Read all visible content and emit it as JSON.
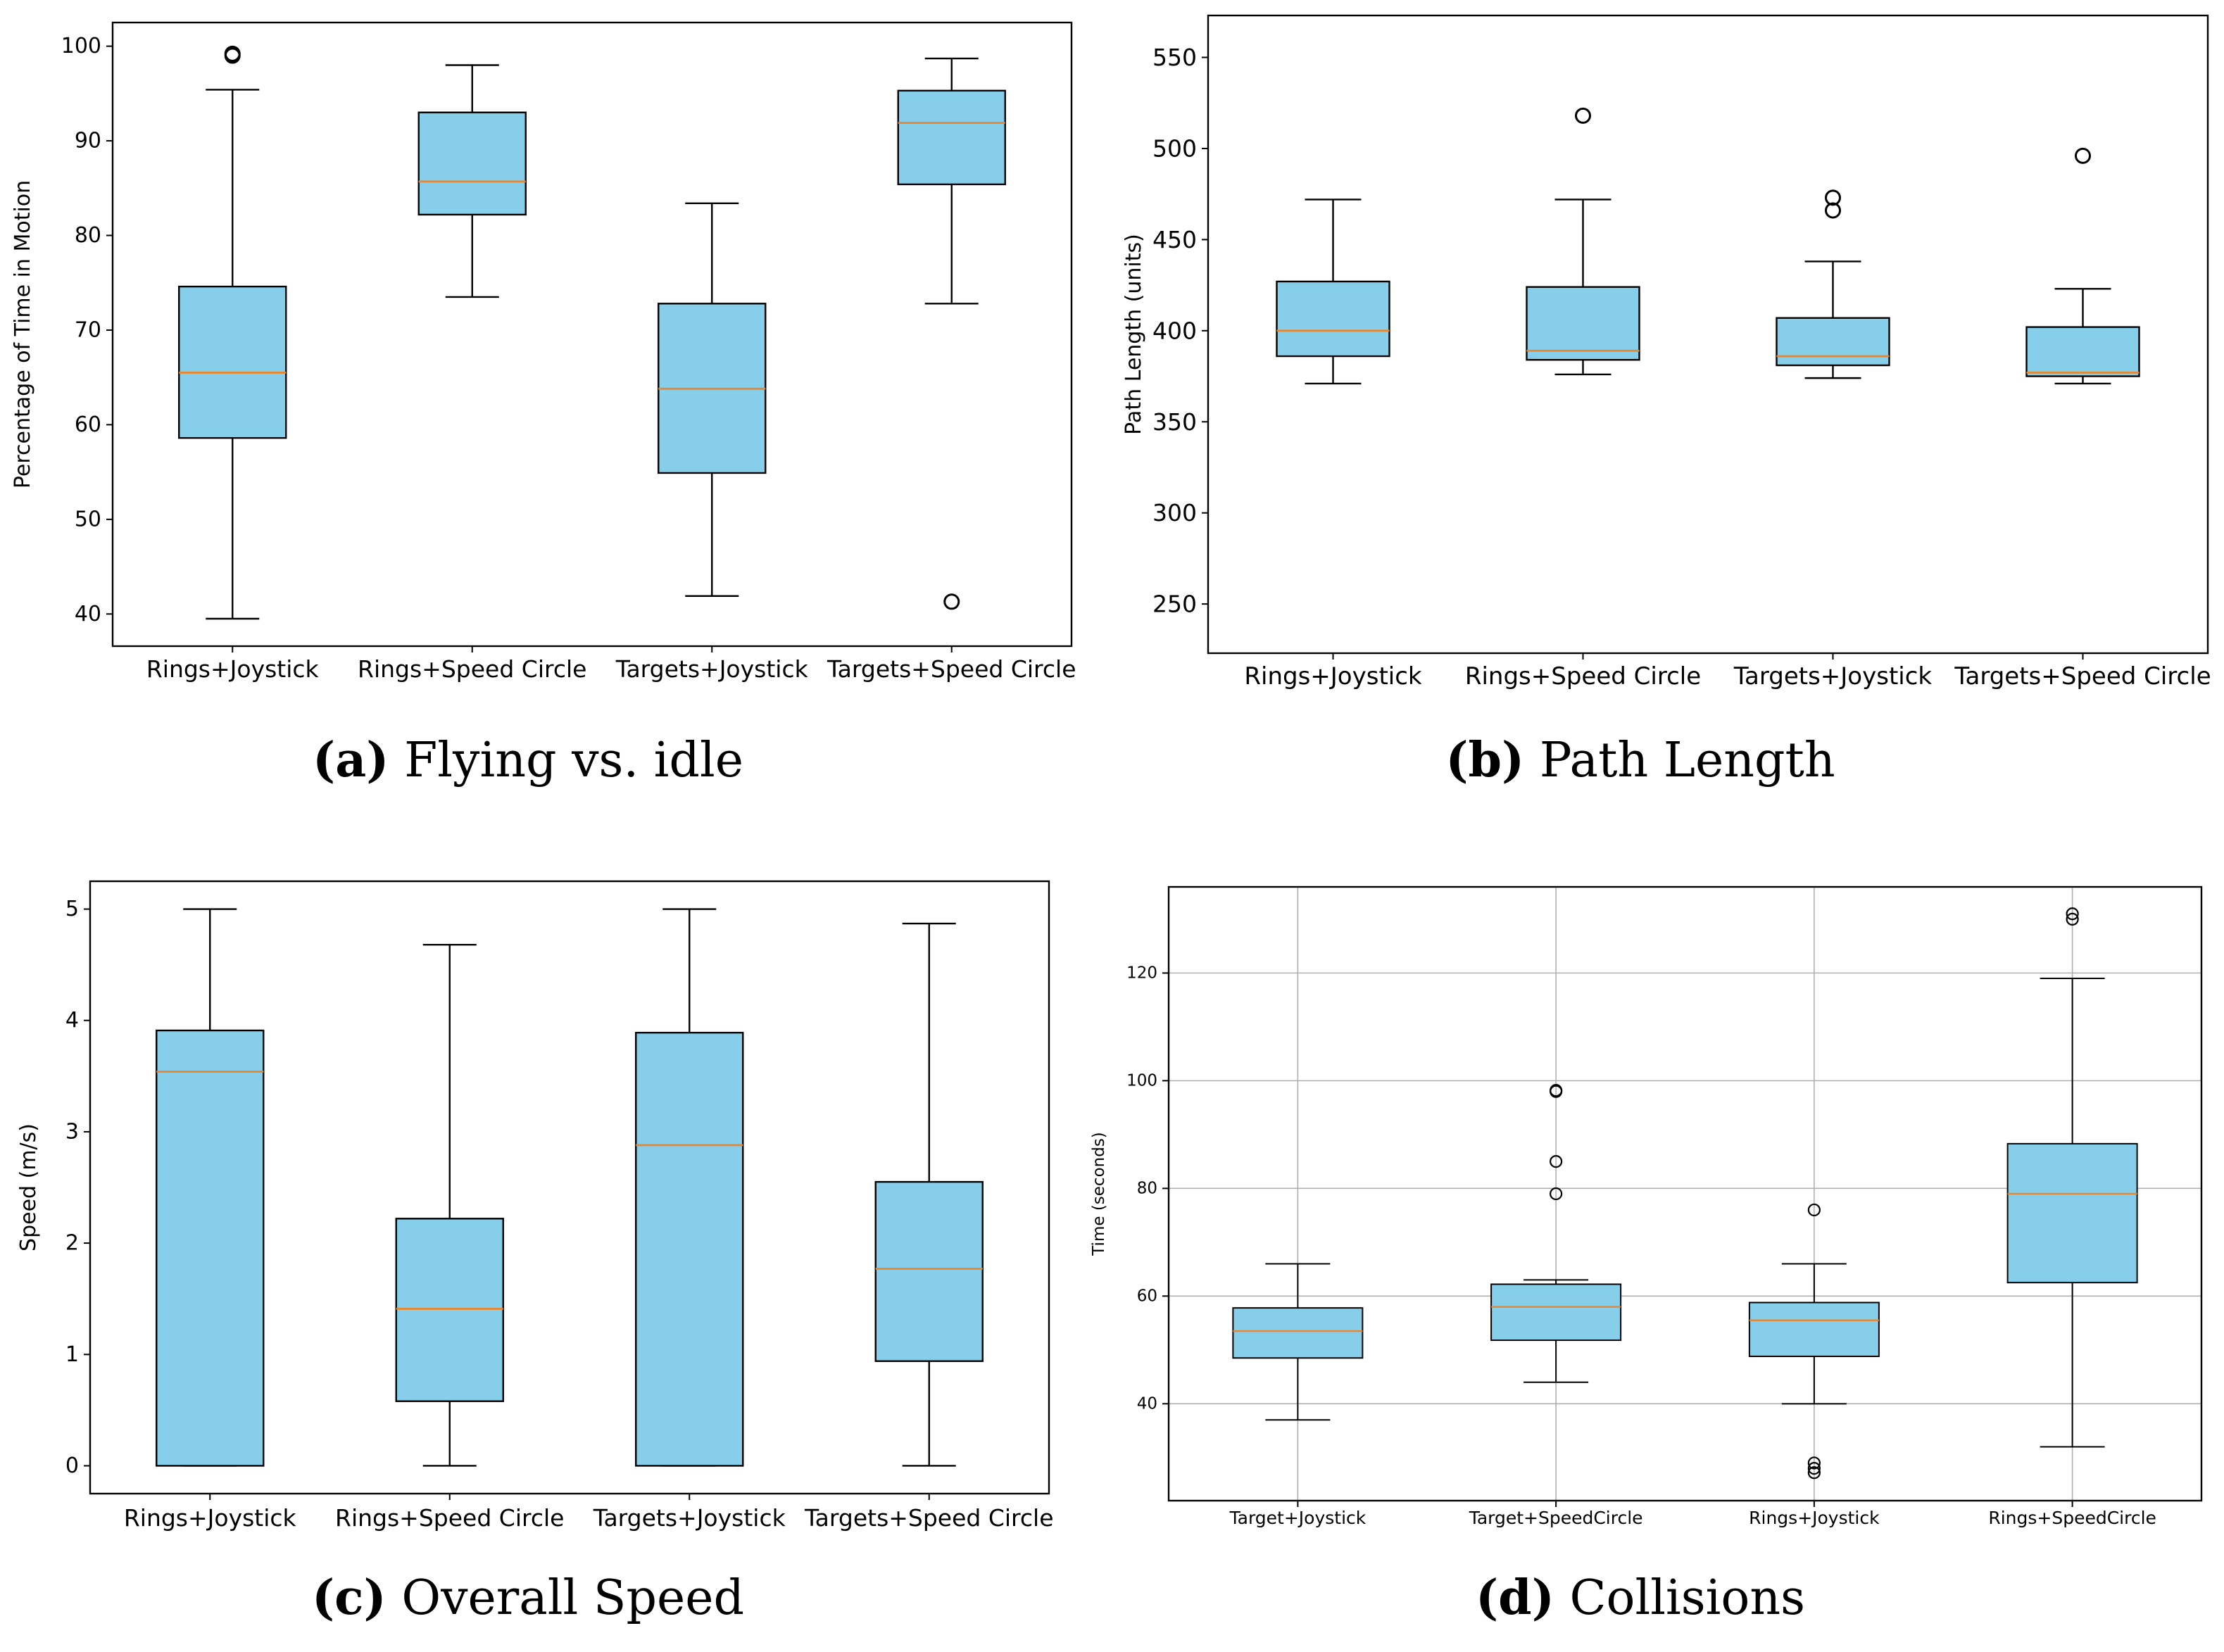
{
  "colors": {
    "box_fill": "#87CEEB",
    "median": "#E8872F",
    "edge": "#000000",
    "grid": "#b0b0b0"
  },
  "chart_data": [
    {
      "id": "a",
      "type": "boxplot",
      "caption_letter": "(a)",
      "caption_text": "Flying vs. idle",
      "title": "",
      "xlabel": "",
      "ylabel": "Percentage of Time in Motion",
      "ylim": [
        36.6,
        102.5
      ],
      "yticks": [
        40,
        50,
        60,
        70,
        80,
        90,
        100
      ],
      "grid": false,
      "categories": [
        "Rings+Joystick",
        "Rings+Speed Circle",
        "Targets+Joystick",
        "Targets+Speed Circle"
      ],
      "boxes": [
        {
          "whislo": 39.5,
          "q1": 58.6,
          "med": 65.5,
          "q3": 74.6,
          "whishi": 95.4,
          "fliers": [
            99.0,
            99.2
          ]
        },
        {
          "whislo": 73.5,
          "q1": 82.2,
          "med": 85.7,
          "q3": 93.0,
          "whishi": 98.0,
          "fliers": []
        },
        {
          "whislo": 41.9,
          "q1": 54.9,
          "med": 63.8,
          "q3": 72.8,
          "whishi": 83.4,
          "fliers": []
        },
        {
          "whislo": 72.8,
          "q1": 85.4,
          "med": 91.9,
          "q3": 95.3,
          "whishi": 98.7,
          "fliers": [
            41.3
          ]
        }
      ]
    },
    {
      "id": "b",
      "type": "boxplot",
      "caption_letter": "(b)",
      "caption_text": "Path Length",
      "title": "",
      "xlabel": "",
      "ylabel": "Path Length (units)",
      "ylim": [
        223,
        573
      ],
      "yticks": [
        250,
        300,
        350,
        400,
        450,
        500,
        550
      ],
      "grid": false,
      "categories": [
        "Rings+Joystick",
        "Rings+Speed Circle",
        "Targets+Joystick",
        "Targets+Speed Circle"
      ],
      "boxes": [
        {
          "whislo": 371,
          "q1": 386,
          "med": 400,
          "q3": 427,
          "whishi": 472,
          "fliers": []
        },
        {
          "whislo": 376,
          "q1": 384,
          "med": 389,
          "q3": 424,
          "whishi": 472,
          "fliers": [
            518
          ]
        },
        {
          "whislo": 374,
          "q1": 381,
          "med": 386,
          "q3": 407,
          "whishi": 438,
          "fliers": [
            466,
            473
          ]
        },
        {
          "whislo": 371,
          "q1": 375,
          "med": 377,
          "q3": 402,
          "whishi": 423,
          "fliers": [
            496
          ]
        }
      ]
    },
    {
      "id": "c",
      "type": "boxplot",
      "caption_letter": "(c)",
      "caption_text": "Overall Speed",
      "title": "",
      "xlabel": "",
      "ylabel": "Speed (m/s)",
      "ylim": [
        -0.25,
        5.25
      ],
      "yticks": [
        0,
        1,
        2,
        3,
        4,
        5
      ],
      "grid": false,
      "categories": [
        "Rings+Joystick",
        "Rings+Speed Circle",
        "Targets+Joystick",
        "Targets+Speed Circle"
      ],
      "boxes": [
        {
          "whislo": 0.0,
          "q1": 0.0,
          "med": 3.54,
          "q3": 3.91,
          "whishi": 5.0,
          "fliers": []
        },
        {
          "whislo": 0.0,
          "q1": 0.58,
          "med": 1.41,
          "q3": 2.22,
          "whishi": 4.68,
          "fliers": []
        },
        {
          "whislo": 0.0,
          "q1": 0.0,
          "med": 2.88,
          "q3": 3.89,
          "whishi": 5.0,
          "fliers": []
        },
        {
          "whislo": 0.0,
          "q1": 0.94,
          "med": 1.77,
          "q3": 2.55,
          "whishi": 4.87,
          "fliers": []
        }
      ]
    },
    {
      "id": "d",
      "type": "boxplot",
      "caption_letter": "(d)",
      "caption_text": "Collisions",
      "title": "",
      "xlabel": "",
      "ylabel": "Time (seconds)",
      "ylim": [
        22,
        136
      ],
      "yticks": [
        40,
        60,
        80,
        100,
        120
      ],
      "grid": true,
      "categories": [
        "Target+Joystick",
        "Target+SpeedCircle",
        "Rings+Joystick",
        "Rings+SpeedCircle"
      ],
      "boxes": [
        {
          "whislo": 37,
          "q1": 48.5,
          "med": 53.5,
          "q3": 57.8,
          "whishi": 66,
          "fliers": []
        },
        {
          "whislo": 44,
          "q1": 51.8,
          "med": 58,
          "q3": 62.2,
          "whishi": 63,
          "fliers": [
            79,
            85,
            98,
            98.2
          ]
        },
        {
          "whislo": 40,
          "q1": 48.8,
          "med": 55.5,
          "q3": 58.8,
          "whishi": 66,
          "fliers": [
            76,
            29,
            28,
            27.2
          ]
        },
        {
          "whislo": 32,
          "q1": 62.5,
          "med": 79,
          "q3": 88.3,
          "whishi": 119,
          "fliers": [
            130,
            131
          ]
        }
      ]
    }
  ]
}
